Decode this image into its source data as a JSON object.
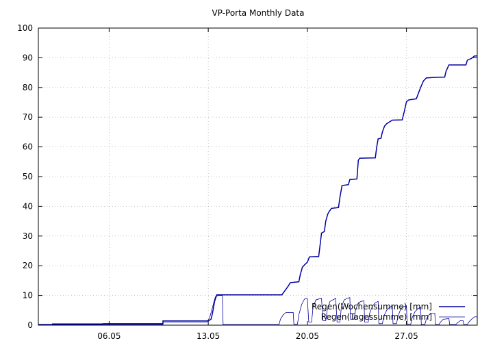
{
  "chart_data": {
    "type": "line",
    "title": "VP-Porta Monthly Data",
    "xlabel": "",
    "ylabel": "",
    "xlim": [
      0,
      31
    ],
    "ylim": [
      0,
      100
    ],
    "x_ticks": [
      {
        "x": 5,
        "label": "06.05"
      },
      {
        "x": 12,
        "label": "13.05"
      },
      {
        "x": 19,
        "label": "20.05"
      },
      {
        "x": 26,
        "label": "27.05"
      }
    ],
    "y_ticks": [
      0,
      10,
      20,
      30,
      40,
      50,
      60,
      70,
      80,
      90,
      100
    ],
    "grid": true,
    "legend_position": "bottom-right",
    "series": [
      {
        "name": "Regen(Wochensumme) [mm]",
        "color": "#0000a0",
        "step": true,
        "points": [
          [
            0,
            0.2
          ],
          [
            1,
            0.2
          ],
          [
            1,
            0.4
          ],
          [
            4.5,
            0.4
          ],
          [
            4.6,
            0.5
          ],
          [
            8.8,
            0.5
          ],
          [
            8.8,
            1.4
          ],
          [
            12.0,
            1.4
          ],
          [
            12.2,
            2.0
          ],
          [
            12.3,
            4.0
          ],
          [
            12.45,
            8.0
          ],
          [
            12.55,
            9.5
          ],
          [
            12.6,
            10.2
          ],
          [
            17.2,
            10.2
          ],
          [
            17.4,
            11.5
          ],
          [
            17.6,
            12.8
          ],
          [
            17.8,
            14.3
          ],
          [
            18.4,
            14.6
          ],
          [
            18.5,
            17.0
          ],
          [
            18.65,
            19.5
          ],
          [
            18.8,
            20.3
          ],
          [
            19.0,
            21.2
          ],
          [
            19.15,
            23.0
          ],
          [
            19.8,
            23.1
          ],
          [
            19.9,
            27.0
          ],
          [
            20.0,
            31.0
          ],
          [
            20.2,
            31.5
          ],
          [
            20.3,
            35.0
          ],
          [
            20.45,
            37.5
          ],
          [
            20.55,
            38.3
          ],
          [
            20.7,
            39.3
          ],
          [
            21.2,
            39.6
          ],
          [
            21.3,
            43.0
          ],
          [
            21.45,
            47.0
          ],
          [
            21.9,
            47.3
          ],
          [
            22.0,
            49.0
          ],
          [
            22.5,
            49.2
          ],
          [
            22.6,
            55.5
          ],
          [
            22.7,
            56.2
          ],
          [
            23.8,
            56.3
          ],
          [
            23.9,
            60.0
          ],
          [
            24.0,
            62.7
          ],
          [
            24.2,
            62.9
          ],
          [
            24.3,
            65.0
          ],
          [
            24.45,
            67.0
          ],
          [
            24.6,
            67.8
          ],
          [
            24.8,
            68.4
          ],
          [
            25.0,
            69.0
          ],
          [
            25.7,
            69.1
          ],
          [
            25.85,
            72.0
          ],
          [
            26.0,
            75.2
          ],
          [
            26.15,
            75.8
          ],
          [
            26.7,
            76.2
          ],
          [
            26.8,
            77.5
          ],
          [
            27.0,
            80.0
          ],
          [
            27.2,
            82.2
          ],
          [
            27.4,
            83.2
          ],
          [
            28.0,
            83.4
          ],
          [
            28.7,
            83.5
          ],
          [
            28.8,
            85.5
          ],
          [
            29.0,
            87.6
          ],
          [
            30.2,
            87.6
          ],
          [
            30.3,
            89.2
          ],
          [
            30.6,
            89.8
          ],
          [
            30.8,
            90.6
          ],
          [
            31.0,
            90.6
          ]
        ]
      },
      {
        "name": "Regen(Tagessumme) [mm]",
        "color": "#0000a0",
        "step": true,
        "points": [
          [
            0,
            0.2
          ],
          [
            8.8,
            0.2
          ],
          [
            8.8,
            1.0
          ],
          [
            11.9,
            1.0
          ],
          [
            12.1,
            2.5
          ],
          [
            12.3,
            6.0
          ],
          [
            12.5,
            9.5
          ],
          [
            12.7,
            10.0
          ],
          [
            13.0,
            10.0
          ],
          [
            13.05,
            0.2
          ],
          [
            17.0,
            0.2
          ],
          [
            17.1,
            2.0
          ],
          [
            17.3,
            3.5
          ],
          [
            17.5,
            4.3
          ],
          [
            18.0,
            4.3
          ],
          [
            18.05,
            0.3
          ],
          [
            18.3,
            0.3
          ],
          [
            18.4,
            3.5
          ],
          [
            18.6,
            7.0
          ],
          [
            18.8,
            8.8
          ],
          [
            19.0,
            9.0
          ],
          [
            19.1,
            1.0
          ],
          [
            19.3,
            1.0
          ],
          [
            19.4,
            6.0
          ],
          [
            19.6,
            8.5
          ],
          [
            19.8,
            8.8
          ],
          [
            20.0,
            9.0
          ],
          [
            20.1,
            1.5
          ],
          [
            20.3,
            1.5
          ],
          [
            20.4,
            5.0
          ],
          [
            20.6,
            8.0
          ],
          [
            20.8,
            8.5
          ],
          [
            21.0,
            9.0
          ],
          [
            21.1,
            1.0
          ],
          [
            21.3,
            1.0
          ],
          [
            21.4,
            6.0
          ],
          [
            21.6,
            8.5
          ],
          [
            21.8,
            9.0
          ],
          [
            22.0,
            9.3
          ],
          [
            22.05,
            2.0
          ],
          [
            22.3,
            2.0
          ],
          [
            22.4,
            5.0
          ],
          [
            22.6,
            7.5
          ],
          [
            22.8,
            8.0
          ],
          [
            23.0,
            8.2
          ],
          [
            23.05,
            1.0
          ],
          [
            23.3,
            1.0
          ],
          [
            23.4,
            4.0
          ],
          [
            23.6,
            6.5
          ],
          [
            23.8,
            7.5
          ],
          [
            24.0,
            8.0
          ],
          [
            24.05,
            0.5
          ],
          [
            24.3,
            0.5
          ],
          [
            24.4,
            3.0
          ],
          [
            24.6,
            5.0
          ],
          [
            24.8,
            6.0
          ],
          [
            25.0,
            6.5
          ],
          [
            25.05,
            0.5
          ],
          [
            25.3,
            0.5
          ],
          [
            25.4,
            3.0
          ],
          [
            25.6,
            5.5
          ],
          [
            25.8,
            6.2
          ],
          [
            26.0,
            6.5
          ],
          [
            26.05,
            0.3
          ],
          [
            26.3,
            0.3
          ],
          [
            26.4,
            2.5
          ],
          [
            26.6,
            4.5
          ],
          [
            26.8,
            5.5
          ],
          [
            27.0,
            6.0
          ],
          [
            27.05,
            0.2
          ],
          [
            27.3,
            0.2
          ],
          [
            27.4,
            2.0
          ],
          [
            27.6,
            3.5
          ],
          [
            27.8,
            4.0
          ],
          [
            28.0,
            4.0
          ],
          [
            28.05,
            0.2
          ],
          [
            28.3,
            0.2
          ],
          [
            28.4,
            1.0
          ],
          [
            28.6,
            2.0
          ],
          [
            29.0,
            2.2
          ],
          [
            29.05,
            0.2
          ],
          [
            29.5,
            0.2
          ],
          [
            29.6,
            0.8
          ],
          [
            29.8,
            1.5
          ],
          [
            30.0,
            1.5
          ],
          [
            30.05,
            0.2
          ],
          [
            30.3,
            0.2
          ],
          [
            30.4,
            1.0
          ],
          [
            30.6,
            2.0
          ],
          [
            30.8,
            2.8
          ],
          [
            31.0,
            2.8
          ]
        ]
      }
    ]
  }
}
